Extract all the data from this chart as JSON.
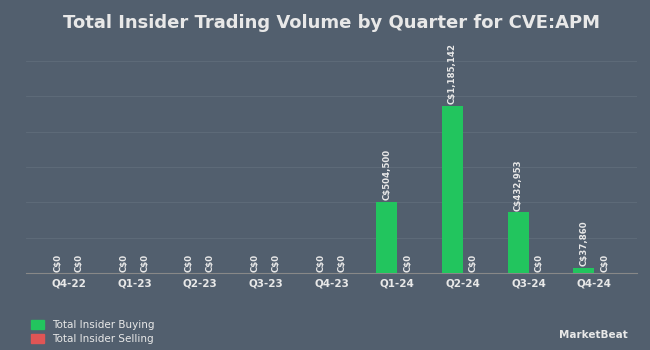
{
  "title": "Total Insider Trading Volume by Quarter for CVE:APM",
  "quarters": [
    "Q4-22",
    "Q1-23",
    "Q2-23",
    "Q3-23",
    "Q4-23",
    "Q1-24",
    "Q2-24",
    "Q3-24",
    "Q4-24"
  ],
  "buying": [
    0,
    0,
    0,
    0,
    0,
    504500,
    1185142,
    432953,
    37860
  ],
  "selling": [
    0,
    0,
    0,
    0,
    0,
    0,
    0,
    0,
    0
  ],
  "buying_labels": [
    "C$0",
    "C$0",
    "C$0",
    "C$0",
    "C$0",
    "C$504,500",
    "C$1,185,142",
    "C$432,953",
    "C$37,860"
  ],
  "selling_labels": [
    "C$0",
    "C$0",
    "C$0",
    "C$0",
    "C$0",
    "C$0",
    "C$0",
    "C$0",
    "C$0"
  ],
  "buying_color": "#22c55e",
  "selling_color": "#e05555",
  "background_color": "#525f6e",
  "plot_bg_color": "#525f6e",
  "text_color": "#e8e8e8",
  "grid_color": "#606d7a",
  "bar_width": 0.32,
  "legend_buying": "Total Insider Buying",
  "legend_selling": "Total Insider Selling",
  "title_fontsize": 13,
  "label_fontsize": 6.2,
  "tick_fontsize": 7.5,
  "legend_fontsize": 7.5
}
